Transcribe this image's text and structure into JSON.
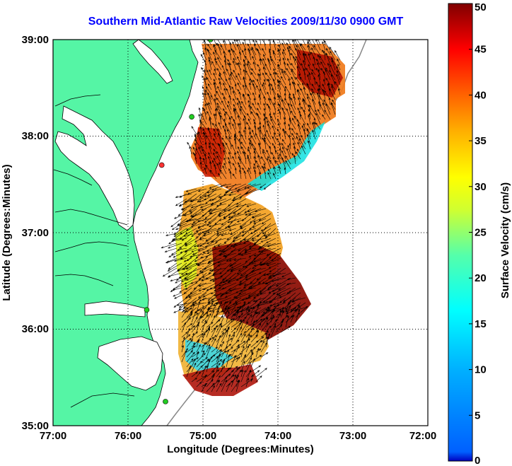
{
  "title": "Southern Mid-Atlantic Raw Velocities 2009/11/30 0900 GMT",
  "x_axis": {
    "label": "Longitude (Degrees:Minutes)",
    "ticks": [
      "77:00",
      "76:00",
      "75:00",
      "74:00",
      "73:00",
      "72:00"
    ]
  },
  "y_axis": {
    "label": "Latitude (Degrees:Minutes)",
    "ticks": [
      "39:00",
      "38:00",
      "37:00",
      "36:00",
      "35:00"
    ]
  },
  "colorbar": {
    "label": "Surface Velocity (cm/s)",
    "ticks": [
      "50",
      "45",
      "40",
      "35",
      "30",
      "25",
      "20",
      "15",
      "10",
      "5",
      "0"
    ],
    "range": [
      0,
      50
    ]
  },
  "colors": {
    "land": "#55f5a5",
    "coastline": "#000000",
    "title": "#0000ff",
    "station": "#22cc22",
    "station_alert": "#ff3333"
  },
  "map_extent": {
    "lon": [
      -77,
      -72
    ],
    "lat": [
      35,
      39
    ]
  },
  "grid": "dotted",
  "stations": [
    {
      "lon": -74.9,
      "lat": 39.0,
      "status": "ok"
    },
    {
      "lon": -75.15,
      "lat": 38.2,
      "status": "ok"
    },
    {
      "lon": -75.55,
      "lat": 37.7,
      "status": "alert"
    },
    {
      "lon": -75.75,
      "lat": 36.2,
      "status": "ok"
    },
    {
      "lon": -75.5,
      "lat": 35.25,
      "status": "ok"
    }
  ]
}
